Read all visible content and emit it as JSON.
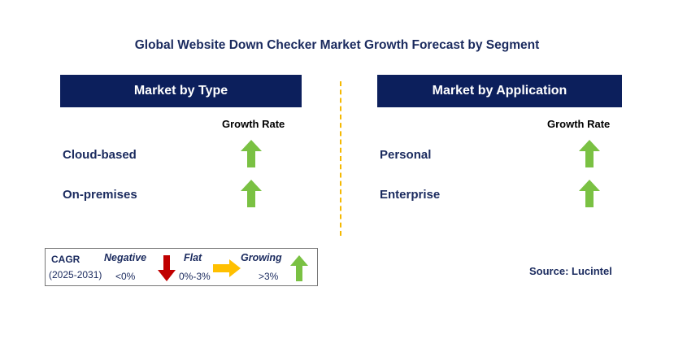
{
  "title": "Global Website Down Checker Market Growth Forecast by Segment",
  "left_panel": {
    "header": "Market by Type",
    "column_header": "Growth Rate",
    "rows": [
      {
        "label": "Cloud-based",
        "growth": "growing"
      },
      {
        "label": "On-premises",
        "growth": "growing"
      }
    ]
  },
  "right_panel": {
    "header": "Market by Application",
    "column_header": "Growth Rate",
    "rows": [
      {
        "label": "Personal",
        "growth": "growing"
      },
      {
        "label": "Enterprise",
        "growth": "growing"
      }
    ]
  },
  "legend": {
    "cagr_label": "CAGR",
    "period": "(2025-2031)",
    "negative_label": "Negative",
    "negative_range": "<0%",
    "flat_label": "Flat",
    "flat_range": "0%-3%",
    "growing_label": "Growing",
    "growing_range": ">3%"
  },
  "source": "Source: Lucintel",
  "colors": {
    "header_bg": "#0c1f5c",
    "growing_arrow": "#7ac143",
    "negative_arrow": "#c00000",
    "flat_arrow": "#ffc000",
    "divider": "#f5b800"
  },
  "icons": {
    "growing": "up-arrow-icon",
    "negative": "down-arrow-icon",
    "flat": "right-arrow-icon"
  }
}
